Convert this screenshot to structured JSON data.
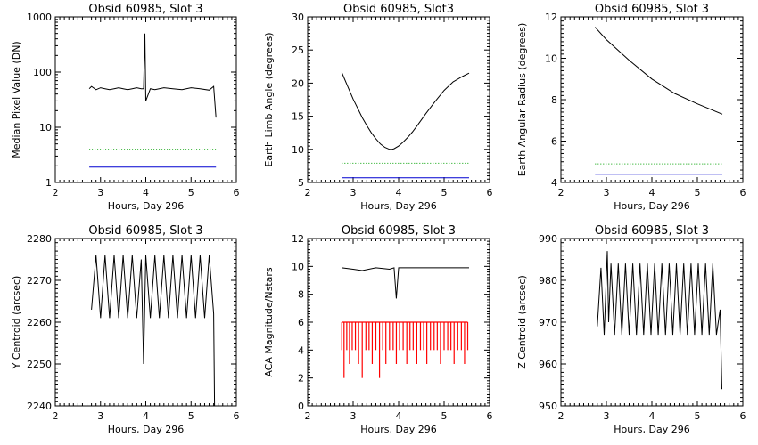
{
  "figure": {
    "colors": {
      "black": "#000000",
      "green": "#00a000",
      "blue": "#0000d0",
      "red": "#ff0000"
    },
    "panels": [
      {
        "key": "p1",
        "chart_type": "line",
        "title": "Obsid 60985, Slot 3",
        "xlabel": "Hours, Day 296",
        "ylabel": "Median Pixel Value (DN)",
        "xlim": [
          2,
          6
        ],
        "ylim": [
          1,
          1000
        ],
        "ylog": true,
        "xticks": [
          "2",
          "3",
          "4",
          "5",
          "6"
        ],
        "yticks": [
          1,
          10,
          100,
          1000
        ],
        "ytick_labels": [
          "1",
          "10",
          "100",
          "1000"
        ]
      },
      {
        "key": "p2",
        "chart_type": "line",
        "title": "Obsid 60985, Slot3",
        "xlabel": "Hours, Day 296",
        "ylabel": "Earth Limb Angle (degrees)",
        "xlim": [
          2,
          6
        ],
        "ylim": [
          5,
          30
        ],
        "ylog": false,
        "xticks": [
          "2",
          "3",
          "4",
          "5",
          "6"
        ],
        "yticks": [
          5,
          10,
          15,
          20,
          25,
          30
        ],
        "ytick_labels": [
          "5",
          "10",
          "15",
          "20",
          "25",
          "30"
        ]
      },
      {
        "key": "p3",
        "chart_type": "line",
        "title": "Obsid 60985, Slot 3",
        "xlabel": "Hours, Day 296",
        "ylabel": "Earth Angular Radius (degrees)",
        "xlim": [
          2,
          6
        ],
        "ylim": [
          4,
          12
        ],
        "ylog": false,
        "xticks": [
          "2",
          "3",
          "4",
          "5",
          "6"
        ],
        "yticks": [
          4,
          6,
          8,
          10,
          12
        ],
        "ytick_labels": [
          "4",
          "6",
          "8",
          "10",
          "12"
        ]
      },
      {
        "key": "p4",
        "chart_type": "line",
        "title": "Obsid 60985, Slot 3",
        "xlabel": "Hours, Day 296",
        "ylabel": "Y Centroid (arcsec)",
        "xlim": [
          2,
          6
        ],
        "ylim": [
          2240,
          2280
        ],
        "ylog": false,
        "xticks": [
          "2",
          "3",
          "4",
          "5",
          "6"
        ],
        "yticks": [
          2240,
          2250,
          2260,
          2270,
          2280
        ],
        "ytick_labels": [
          "2240",
          "2250",
          "2260",
          "2270",
          "2280"
        ]
      },
      {
        "key": "p5",
        "chart_type": "line",
        "title": "Obsid 60985, Slot 3",
        "xlabel": "Hours, Day 296",
        "ylabel": "ACA Magnitude/Nstars",
        "xlim": [
          2,
          6
        ],
        "ylim": [
          0,
          12
        ],
        "ylog": false,
        "xticks": [
          "2",
          "3",
          "4",
          "5",
          "6"
        ],
        "yticks": [
          0,
          2,
          4,
          6,
          8,
          10,
          12
        ],
        "ytick_labels": [
          "0",
          "2",
          "4",
          "6",
          "8",
          "10",
          "12"
        ]
      },
      {
        "key": "p6",
        "chart_type": "line",
        "title": "Obsid 60985, Slot 3",
        "xlabel": "Hours, Day 296",
        "ylabel": "Z Centroid (arcsec)",
        "xlim": [
          2,
          6
        ],
        "ylim": [
          950,
          990
        ],
        "ylog": false,
        "xticks": [
          "2",
          "3",
          "4",
          "5",
          "6"
        ],
        "yticks": [
          950,
          960,
          970,
          980,
          990
        ],
        "ytick_labels": [
          "950",
          "960",
          "970",
          "980",
          "990"
        ]
      }
    ]
  },
  "chart_data": [
    {
      "type": "line",
      "title": "Obsid 60985, Slot 3",
      "xlabel": "Hours, Day 296",
      "ylabel": "Median Pixel Value (DN)",
      "xlim": [
        2,
        6
      ],
      "ylim": [
        1,
        1000
      ],
      "yscale": "log",
      "series": [
        {
          "color": "#000000",
          "style": "solid",
          "x": [
            2.75,
            2.8,
            2.9,
            3.0,
            3.1,
            3.2,
            3.3,
            3.4,
            3.5,
            3.6,
            3.7,
            3.8,
            3.9,
            3.95,
            3.98,
            4.0,
            4.1,
            4.2,
            4.4,
            4.6,
            4.8,
            5.0,
            5.2,
            5.4,
            5.5,
            5.55
          ],
          "y": [
            50,
            55,
            48,
            52,
            50,
            48,
            50,
            52,
            50,
            48,
            50,
            52,
            50,
            50,
            500,
            30,
            50,
            48,
            52,
            50,
            48,
            52,
            50,
            47,
            55,
            15
          ]
        },
        {
          "color": "#00a000",
          "style": "dotted",
          "x": [
            2.75,
            5.55
          ],
          "y": [
            4,
            4
          ]
        },
        {
          "color": "#0000d0",
          "style": "solid",
          "x": [
            2.75,
            5.55
          ],
          "y": [
            1.9,
            1.9
          ]
        }
      ]
    },
    {
      "type": "line",
      "title": "Obsid 60985, Slot3",
      "xlabel": "Hours, Day 296",
      "ylabel": "Earth Limb Angle (degrees)",
      "xlim": [
        2,
        6
      ],
      "ylim": [
        5,
        30
      ],
      "series": [
        {
          "color": "#000000",
          "style": "solid",
          "x": [
            2.75,
            2.9,
            3.0,
            3.1,
            3.2,
            3.3,
            3.4,
            3.5,
            3.6,
            3.7,
            3.8,
            3.85,
            3.9,
            4.0,
            4.1,
            4.2,
            4.3,
            4.4,
            4.6,
            4.8,
            5.0,
            5.2,
            5.4,
            5.55
          ],
          "y": [
            21.6,
            19.2,
            17.6,
            16.2,
            14.8,
            13.6,
            12.5,
            11.6,
            10.8,
            10.3,
            10.0,
            10.0,
            10.1,
            10.5,
            11.1,
            11.8,
            12.6,
            13.5,
            15.4,
            17.2,
            18.9,
            20.2,
            21.0,
            21.5
          ]
        },
        {
          "color": "#00a000",
          "style": "dotted",
          "x": [
            2.75,
            5.55
          ],
          "y": [
            7.9,
            7.9
          ]
        },
        {
          "color": "#0000d0",
          "style": "solid",
          "x": [
            2.75,
            5.55
          ],
          "y": [
            5.7,
            5.7
          ]
        }
      ]
    },
    {
      "type": "line",
      "title": "Obsid 60985, Slot 3",
      "xlabel": "Hours, Day 296",
      "ylabel": "Earth Angular Radius (degrees)",
      "xlim": [
        2,
        6
      ],
      "ylim": [
        4,
        12
      ],
      "series": [
        {
          "color": "#000000",
          "style": "solid",
          "x": [
            2.75,
            3.0,
            3.5,
            4.0,
            4.5,
            5.0,
            5.55
          ],
          "y": [
            11.5,
            10.9,
            9.9,
            9.0,
            8.3,
            7.8,
            7.3
          ]
        },
        {
          "color": "#00a000",
          "style": "dotted",
          "x": [
            2.75,
            5.55
          ],
          "y": [
            4.9,
            4.9
          ]
        },
        {
          "color": "#0000d0",
          "style": "solid",
          "x": [
            2.75,
            5.55
          ],
          "y": [
            4.4,
            4.4
          ]
        }
      ]
    },
    {
      "type": "line",
      "title": "Obsid 60985, Slot 3",
      "xlabel": "Hours, Day 296",
      "ylabel": "Y Centroid (arcsec)",
      "xlim": [
        2,
        6
      ],
      "ylim": [
        2240,
        2280
      ],
      "series": [
        {
          "color": "#000000",
          "style": "solid",
          "x": [
            2.8,
            2.9,
            3.0,
            3.1,
            3.2,
            3.3,
            3.4,
            3.5,
            3.6,
            3.7,
            3.8,
            3.9,
            3.95,
            4.0,
            4.1,
            4.2,
            4.3,
            4.4,
            4.5,
            4.6,
            4.7,
            4.8,
            4.9,
            5.0,
            5.1,
            5.2,
            5.3,
            5.4,
            5.5,
            5.52
          ],
          "y": [
            2263,
            2276,
            2261,
            2276,
            2261,
            2276,
            2261,
            2276,
            2261,
            2276,
            2261,
            2275,
            2250,
            2276,
            2261,
            2276,
            2261,
            2276,
            2261,
            2276,
            2261,
            2276,
            2261,
            2276,
            2261,
            2276,
            2261,
            2276,
            2262,
            2240
          ]
        }
      ]
    },
    {
      "type": "line",
      "title": "Obsid 60985, Slot 3",
      "xlabel": "Hours, Day 296",
      "ylabel": "ACA Magnitude/Nstars",
      "xlim": [
        2,
        6
      ],
      "ylim": [
        0,
        12
      ],
      "series": [
        {
          "color": "#000000",
          "style": "solid",
          "x": [
            2.75,
            3.0,
            3.2,
            3.5,
            3.8,
            3.9,
            3.95,
            4.0,
            4.2,
            4.5,
            5.0,
            5.55
          ],
          "y": [
            9.9,
            9.8,
            9.7,
            9.9,
            9.8,
            9.9,
            7.7,
            9.9,
            9.9,
            9.9,
            9.9,
            9.9
          ]
        },
        {
          "color": "#ff0000",
          "style": "bars",
          "x": [
            2.75,
            2.8,
            2.86,
            2.92,
            2.98,
            3.05,
            3.12,
            3.2,
            3.28,
            3.35,
            3.42,
            3.5,
            3.58,
            3.65,
            3.72,
            3.8,
            3.88,
            3.95,
            4.02,
            4.1,
            4.18,
            4.25,
            4.32,
            4.4,
            4.48,
            4.55,
            4.62,
            4.7,
            4.78,
            4.85,
            4.92,
            5.0,
            5.08,
            5.15,
            5.22,
            5.3,
            5.38,
            5.45,
            5.52
          ],
          "y": [
            4,
            2,
            4,
            3,
            4,
            4,
            3,
            2,
            4,
            4,
            3,
            4,
            2,
            4,
            3,
            4,
            4,
            3,
            4,
            4,
            3,
            4,
            4,
            3,
            4,
            4,
            3,
            4,
            4,
            4,
            3,
            4,
            4,
            4,
            3,
            4,
            4,
            3,
            4
          ],
          "top": 6
        }
      ]
    },
    {
      "type": "line",
      "title": "Obsid 60985, Slot 3",
      "xlabel": "Hours, Day 296",
      "ylabel": "Z Centroid (arcsec)",
      "xlim": [
        2,
        6
      ],
      "ylim": [
        950,
        990
      ],
      "series": [
        {
          "color": "#000000",
          "style": "solid",
          "x": [
            2.8,
            2.88,
            2.95,
            3.02,
            3.05,
            3.1,
            3.18,
            3.26,
            3.34,
            3.42,
            3.5,
            3.58,
            3.66,
            3.74,
            3.82,
            3.9,
            3.98,
            4.06,
            4.14,
            4.22,
            4.3,
            4.38,
            4.46,
            4.54,
            4.62,
            4.7,
            4.78,
            4.86,
            4.94,
            5.02,
            5.1,
            5.18,
            5.26,
            5.34,
            5.42,
            5.5,
            5.54
          ],
          "y": [
            969,
            983,
            967,
            987,
            970,
            984,
            967,
            984,
            967,
            984,
            967,
            984,
            967,
            984,
            967,
            984,
            967,
            984,
            967,
            984,
            967,
            984,
            967,
            984,
            967,
            984,
            967,
            984,
            967,
            984,
            967,
            984,
            967,
            984,
            967,
            973,
            954
          ]
        }
      ]
    }
  ]
}
